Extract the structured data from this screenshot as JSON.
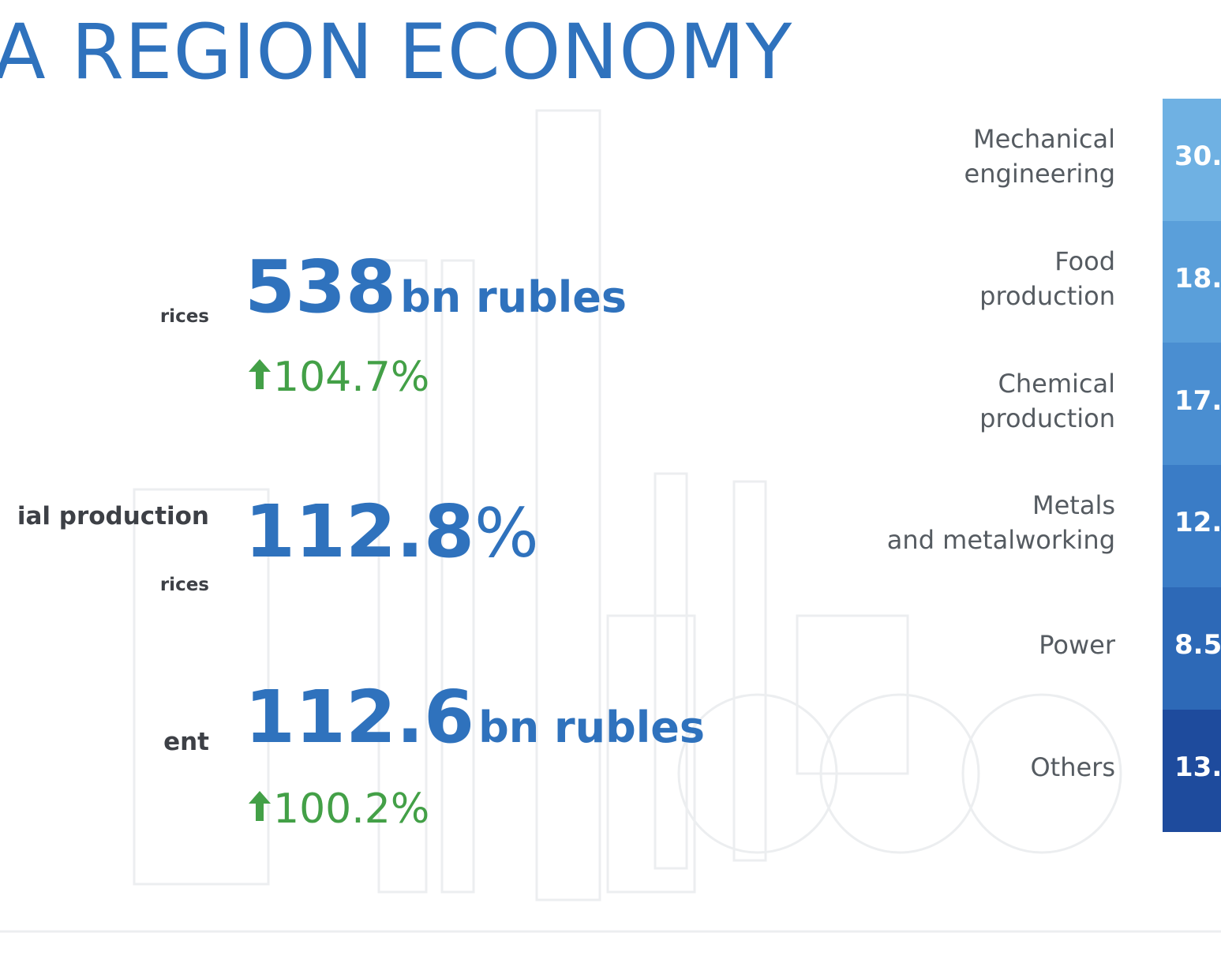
{
  "title": "A REGION ECONOMY",
  "left_labels": [
    "rices",
    "ial production",
    "rices",
    "ent"
  ],
  "metrics": [
    {
      "value": "538",
      "unit": "bn rubles",
      "change": "104.7%"
    },
    {
      "value": "112.8",
      "unit": "%"
    },
    {
      "value": "112.6",
      "unit": "bn rubles",
      "change": "100.2%"
    }
  ],
  "sectors": [
    {
      "name": "Mechanical\nengineering",
      "share": "30."
    },
    {
      "name": "Food\nproduction",
      "share": "18."
    },
    {
      "name": "Chemical\nproduction",
      "share": "17."
    },
    {
      "name": "Metals\nand metalworking",
      "share": "12."
    },
    {
      "name": "Power",
      "share": "8.5"
    },
    {
      "name": "Others",
      "share": "13."
    }
  ]
}
